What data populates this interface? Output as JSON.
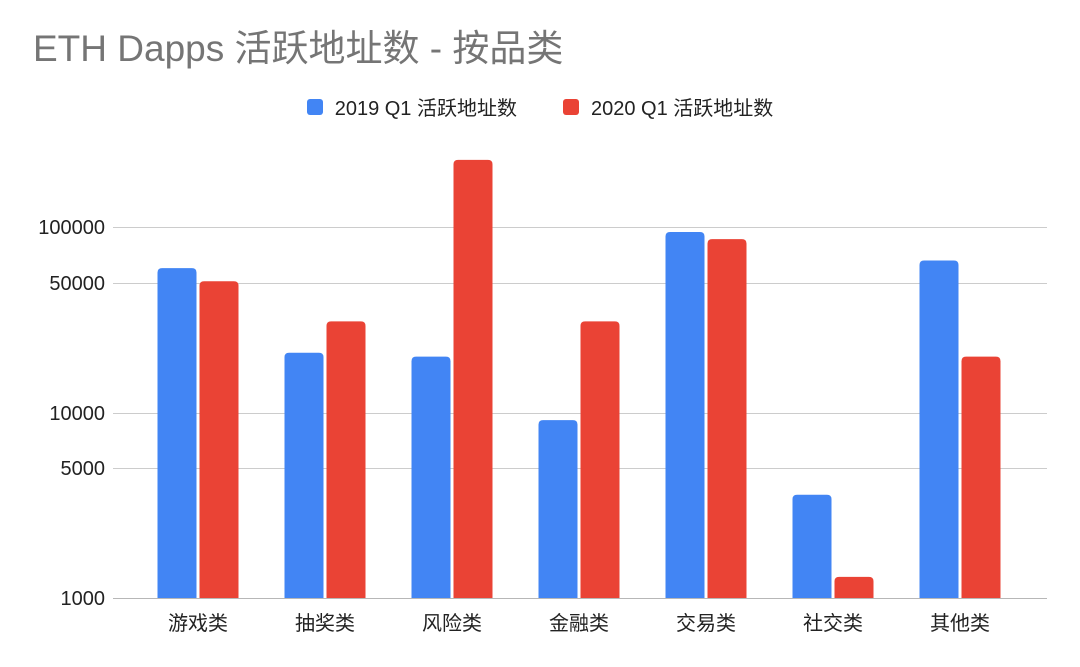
{
  "page": {
    "background": "#ffffff"
  },
  "chart_data": {
    "type": "bar",
    "title": "ETH Dapps 活跃地址数 - 按品类",
    "categories": [
      "游戏类",
      "抽奖类",
      "风险类",
      "金融类",
      "交易类",
      "社交类",
      "其他类"
    ],
    "series": [
      {
        "name": "2019 Q1 活跃地址数",
        "color": "#4285f4",
        "values": [
          60000,
          21000,
          20000,
          9100,
          94000,
          3600,
          66000
        ]
      },
      {
        "name": "2020 Q1 活跃地址数",
        "color": "#ea4335",
        "values": [
          51000,
          31000,
          230000,
          31000,
          86000,
          1300,
          20000
        ]
      }
    ],
    "xlabel": "",
    "ylabel": "",
    "yscale": "log",
    "ylim": [
      1000,
      300000
    ],
    "y_ticks": [
      1000,
      5000,
      10000,
      50000,
      100000
    ],
    "y_tick_labels": [
      "1000",
      "5000",
      "10000",
      "50000",
      "100000"
    ],
    "grid": true,
    "legend_position": "top",
    "colors": {
      "title_text": "#757575",
      "axis_text": "#222222",
      "gridline": "#cccccc",
      "axis_line": "#b7b7b7"
    }
  }
}
